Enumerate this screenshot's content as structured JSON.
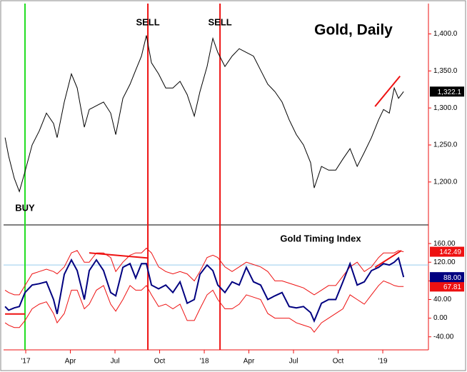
{
  "chart_data": [
    {
      "type": "line",
      "title": "Gold, Daily",
      "x": [
        -1.39,
        -1.15,
        -0.77,
        -0.43,
        -0.05,
        0.43,
        0.91,
        1.39,
        1.87,
        2.11,
        2.59,
        3.07,
        3.46,
        3.94,
        4.27,
        4.75,
        5.23,
        5.71,
        6.05,
        6.53,
        7.01,
        7.39,
        7.78,
        8.11,
        8.45,
        8.93,
        9.41,
        9.89,
        10.37,
        10.85,
        11.33,
        11.71,
        12.19,
        12.58,
        12.91,
        13.39,
        13.87,
        14.35,
        14.83,
        15.31,
        15.79,
        16.27,
        16.75,
        17.23,
        17.71,
        18.19,
        18.67,
        19.15,
        19.39,
        19.88,
        20.36,
        20.84,
        21.32,
        21.8,
        22.28,
        22.76,
        23.24,
        23.72,
        24.05,
        24.44,
        24.77,
        25.06,
        25.4
      ],
      "series": [
        {
          "color": "#000000",
          "end_label": "1,322.1",
          "values": [
            1260,
            1235,
            1205,
            1187,
            1214,
            1250,
            1269,
            1293,
            1279,
            1260,
            1308,
            1346,
            1327,
            1274,
            1298,
            1303,
            1308,
            1293,
            1264,
            1313,
            1332,
            1351,
            1370,
            1398,
            1361,
            1346,
            1327,
            1327,
            1336,
            1318,
            1289,
            1322,
            1356,
            1394,
            1375,
            1356,
            1370,
            1380,
            1375,
            1370,
            1351,
            1332,
            1322,
            1308,
            1284,
            1264,
            1250,
            1226,
            1192,
            1221,
            1216,
            1216,
            1231,
            1245,
            1221,
            1240,
            1260,
            1284,
            1298,
            1293,
            1327,
            1313,
            1322.1
          ]
        }
      ],
      "xlim": [
        -1.49,
        27.07
      ],
      "ylim": [
        1142,
        1441
      ],
      "yticks": [
        {
          "value": 1200,
          "label": "1,200.0"
        },
        {
          "value": 1250,
          "label": "1,250.0"
        },
        {
          "value": 1300,
          "label": "1,300.0"
        },
        {
          "value": 1350,
          "label": "1,350.0"
        },
        {
          "value": 1400,
          "label": "1,400.0"
        }
      ],
      "signals": [
        {
          "label": "BUY",
          "x": -0.05,
          "color": "#22dd22"
        },
        {
          "label": "SELL",
          "x": 8.21,
          "color": "#ee1111"
        },
        {
          "label": "SELL",
          "x": 13.06,
          "color": "#ee1111"
        }
      ],
      "trendlines": [
        {
          "x": [
            23.48,
            25.16
          ],
          "y": [
            1302,
            1343
          ],
          "color": "#ee1111"
        }
      ]
    },
    {
      "type": "line",
      "title": "Gold Timing Index",
      "x": [
        -1.39,
        -1.15,
        -0.77,
        -0.43,
        -0.05,
        0.43,
        0.91,
        1.39,
        1.87,
        2.11,
        2.59,
        3.07,
        3.46,
        3.94,
        4.27,
        4.75,
        5.23,
        5.71,
        6.05,
        6.53,
        7.01,
        7.39,
        7.78,
        8.11,
        8.45,
        8.93,
        9.41,
        9.89,
        10.37,
        10.85,
        11.33,
        11.71,
        12.19,
        12.58,
        12.91,
        13.39,
        13.87,
        14.35,
        14.83,
        15.31,
        15.79,
        16.27,
        16.75,
        17.23,
        17.71,
        18.19,
        18.67,
        19.15,
        19.39,
        19.88,
        20.36,
        20.84,
        21.32,
        21.8,
        22.28,
        22.76,
        23.24,
        23.72,
        24.05,
        24.44,
        24.77,
        25.06,
        25.4
      ],
      "series": [
        {
          "color": "#ee1111",
          "end_label": "142.49",
          "values": [
            60,
            55,
            50,
            50,
            70,
            95,
            100,
            105,
            100,
            95,
            110,
            140,
            145,
            120,
            120,
            140,
            140,
            130,
            100,
            120,
            135,
            140,
            140,
            150,
            140,
            110,
            100,
            95,
            100,
            95,
            80,
            100,
            130,
            135,
            130,
            110,
            100,
            110,
            120,
            115,
            110,
            100,
            80,
            80,
            75,
            70,
            65,
            55,
            50,
            60,
            70,
            70,
            90,
            110,
            120,
            100,
            110,
            130,
            140,
            140,
            140,
            145,
            142.49
          ]
        },
        {
          "color": "#ee1111",
          "end_label": "67.81",
          "values": [
            -10,
            -15,
            -20,
            -20,
            -5,
            20,
            30,
            35,
            10,
            -10,
            10,
            60,
            60,
            20,
            30,
            60,
            70,
            30,
            15,
            40,
            70,
            60,
            60,
            70,
            50,
            25,
            30,
            20,
            30,
            -5,
            -5,
            20,
            50,
            60,
            40,
            20,
            20,
            30,
            50,
            45,
            40,
            10,
            0,
            0,
            0,
            -10,
            -15,
            -20,
            -30,
            -10,
            0,
            10,
            20,
            50,
            40,
            30,
            50,
            70,
            80,
            75,
            70,
            68,
            67.81
          ]
        },
        {
          "color": "#000080",
          "end_label": "88.00",
          "values": [
            25,
            17,
            22,
            25,
            55,
            71,
            74,
            78,
            40,
            9,
            94,
            125,
            102,
            40,
            102,
            125,
            102,
            55,
            48,
            109,
            117,
            86,
            117,
            117,
            71,
            63,
            71,
            55,
            78,
            32,
            40,
            94,
            114,
            102,
            71,
            55,
            78,
            71,
            109,
            78,
            71,
            40,
            48,
            55,
            25,
            22,
            25,
            12,
            -6,
            32,
            40,
            40,
            78,
            117,
            71,
            78,
            102,
            109,
            117,
            114,
            120,
            129,
            88
          ]
        }
      ],
      "xlim": [
        -1.49,
        27.07
      ],
      "ylim": [
        -68,
        200
      ],
      "yticks": [
        {
          "value": -40,
          "label": "-40.00"
        },
        {
          "value": 0,
          "label": "0.00"
        },
        {
          "value": 40,
          "label": "40.00"
        },
        {
          "value": 80,
          "label": "80.00"
        },
        {
          "value": 120,
          "label": "120.00"
        },
        {
          "value": 160,
          "label": "160.00"
        }
      ],
      "reference_line": 114,
      "xticks": [
        {
          "value": 0,
          "label": "'17"
        },
        {
          "value": 3,
          "label": "Apr"
        },
        {
          "value": 6,
          "label": "Jul"
        },
        {
          "value": 9,
          "label": "Oct"
        },
        {
          "value": 12,
          "label": "'18"
        },
        {
          "value": 15,
          "label": "Apr"
        },
        {
          "value": 18,
          "label": "Jul"
        },
        {
          "value": 21,
          "label": "Oct"
        },
        {
          "value": 24,
          "label": "'19"
        }
      ],
      "signals": [
        {
          "x": -0.05,
          "color": "#22dd22"
        },
        {
          "x": 8.21,
          "color": "#ee1111"
        },
        {
          "x": 13.06,
          "color": "#ee1111"
        }
      ],
      "trendlines": [
        {
          "x": [
            4.27,
            8.21
          ],
          "y": [
            140,
            129
          ],
          "color": "#ee1111"
        },
        {
          "x": [
            23.48,
            25.25
          ],
          "y": [
            109,
            145
          ],
          "color": "#ee1111"
        },
        {
          "x": [
            -1.39,
            -0.05
          ],
          "y": [
            9,
            9
          ],
          "color": "#ee1111"
        }
      ]
    }
  ]
}
